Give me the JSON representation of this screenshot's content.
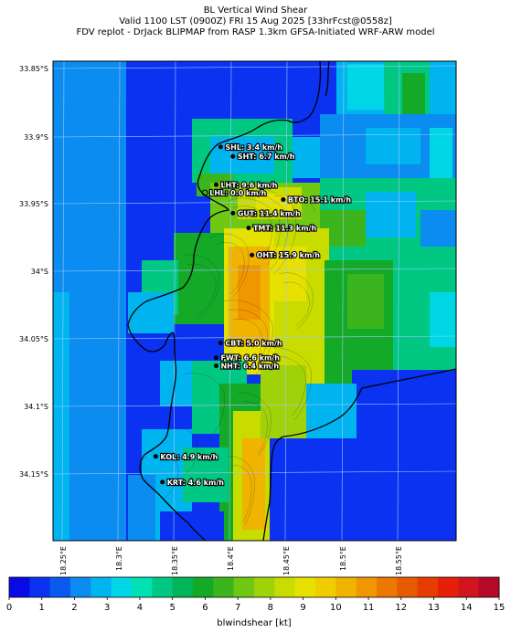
{
  "header": {
    "line1": "BL Vertical Wind Shear",
    "line2": "Valid 1100 LST (0900Z) FRI 15 Aug 2025 [33hrFcst@0558z]",
    "line3": "FDV replot - DrJack BLIPMAP from RASP 1.3km GFSA-Initiated WRF-ARW model"
  },
  "lat_labels": [
    "33.85°S",
    "33.9°S",
    "33.95°S",
    "34°S",
    "34.05°S",
    "34.1°S",
    "34.15°S"
  ],
  "lon_labels": [
    "18.25°E",
    "18.3°E",
    "18.35°E",
    "18.4°E",
    "18.45°E",
    "18.5°E",
    "18.55°E"
  ],
  "stations": [
    {
      "id": "SHL",
      "label": "SHL: 3.4 km/h",
      "lon": 18.39,
      "lat": 33.908
    },
    {
      "id": "SHT",
      "label": "SHT: 6.7 km/h",
      "lon": 18.401,
      "lat": 33.915
    },
    {
      "id": "LHT",
      "label": "LHT: 9.6 km/h",
      "lon": 18.386,
      "lat": 33.936
    },
    {
      "id": "LHL",
      "label": "LHL: 0.0 km/h",
      "lon": 18.376,
      "lat": 33.942
    },
    {
      "id": "BTO",
      "label": "BTO: 15.1 km/h",
      "lon": 18.446,
      "lat": 33.947
    },
    {
      "id": "GUT",
      "label": "GUT: 11.4 km/h",
      "lon": 18.401,
      "lat": 33.957
    },
    {
      "id": "TMT",
      "label": "TMT: 11.3 km/h",
      "lon": 18.415,
      "lat": 33.968
    },
    {
      "id": "OHT",
      "label": "OHT: 15.9 km/h",
      "lon": 18.418,
      "lat": 33.988
    },
    {
      "id": "CBT",
      "label": "CBT: 5.0 km/h",
      "lon": 18.39,
      "lat": 34.053
    },
    {
      "id": "FWT",
      "label": "FWT: 6.6 km/h",
      "lon": 18.386,
      "lat": 34.064
    },
    {
      "id": "NHT",
      "label": "NHT: 6.4 km/h",
      "lon": 18.386,
      "lat": 34.07
    },
    {
      "id": "KOL",
      "label": "KOL: 4.9 km/h",
      "lon": 18.332,
      "lat": 34.137
    },
    {
      "id": "KRT",
      "label": "KRT: 4.6 km/h",
      "lon": 18.338,
      "lat": 34.156
    }
  ],
  "colorbar": {
    "title": "blwindshear [kt]",
    "ticks": [
      "0",
      "1",
      "2",
      "3",
      "4",
      "5",
      "6",
      "7",
      "8",
      "9",
      "10",
      "11",
      "12",
      "13",
      "14",
      "15"
    ],
    "colors": [
      "#0a0ae6",
      "#0a32f0",
      "#0a5af0",
      "#0a8cf0",
      "#00b4f0",
      "#00d7e6",
      "#00e1b4",
      "#00c882",
      "#00b45a",
      "#14aa28",
      "#3cb41e",
      "#6ec814",
      "#a0d20a",
      "#c8dc00",
      "#e6e100",
      "#f0cd00",
      "#f0b400",
      "#f09600",
      "#eb7800",
      "#e65a00",
      "#e63c00",
      "#e61e0a",
      "#d2141e",
      "#b40a28"
    ]
  }
}
